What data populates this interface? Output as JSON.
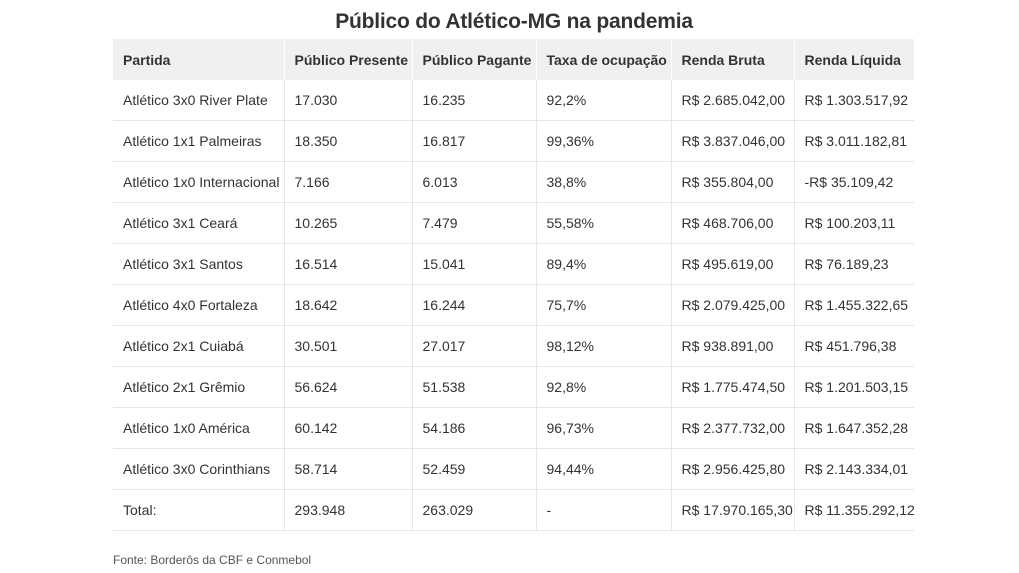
{
  "chart_data": {
    "type": "table",
    "title": "Público do Atlético-MG na pandemia",
    "columns": [
      "Partida",
      "Público Presente",
      "Público Pagante",
      "Taxa de ocupação",
      "Renda Bruta",
      "Renda Líquida"
    ],
    "rows": [
      [
        "Atlético 3x0 River Plate",
        "17.030",
        "16.235",
        "92,2%",
        "R$ 2.685.042,00",
        "R$ 1.303.517,92"
      ],
      [
        "Atlético 1x1 Palmeiras",
        "18.350",
        "16.817",
        "99,36%",
        "R$ 3.837.046,00",
        "R$ 3.011.182,81"
      ],
      [
        "Atlético 1x0 Internacional",
        "7.166",
        "6.013",
        "38,8%",
        "R$ 355.804,00",
        "-R$ 35.109,42"
      ],
      [
        "Atlético 3x1 Ceará",
        "10.265",
        "7.479",
        "55,58%",
        "R$ 468.706,00",
        "R$ 100.203,11"
      ],
      [
        "Atlético 3x1 Santos",
        "16.514",
        "15.041",
        "89,4%",
        "R$ 495.619,00",
        "R$ 76.189,23"
      ],
      [
        "Atlético 4x0 Fortaleza",
        "18.642",
        "16.244",
        "75,7%",
        "R$ 2.079.425,00",
        "R$ 1.455.322,65"
      ],
      [
        "Atlético 2x1 Cuiabá",
        "30.501",
        "27.017",
        "98,12%",
        "R$ 938.891,00",
        "R$ 451.796,38"
      ],
      [
        "Atlético 2x1 Grêmio",
        "56.624",
        "51.538",
        "92,8%",
        "R$ 1.775.474,50",
        "R$ 1.201.503,15"
      ],
      [
        "Atlético 1x0 América",
        "60.142",
        "54.186",
        "96,73%",
        "R$ 2.377.732,00",
        "R$ 1.647.352,28"
      ],
      [
        "Atlético 3x0 Corinthians",
        "58.714",
        "52.459",
        "94,44%",
        "R$ 2.956.425,80",
        "R$ 2.143.334,01"
      ]
    ],
    "total_row": [
      "Total:",
      "293.948",
      "263.029",
      "-",
      "R$ 17.970.165,30",
      "R$ 11.355.292,12"
    ],
    "source": "Fonte: Borderôs da CBF e Conmebol"
  }
}
